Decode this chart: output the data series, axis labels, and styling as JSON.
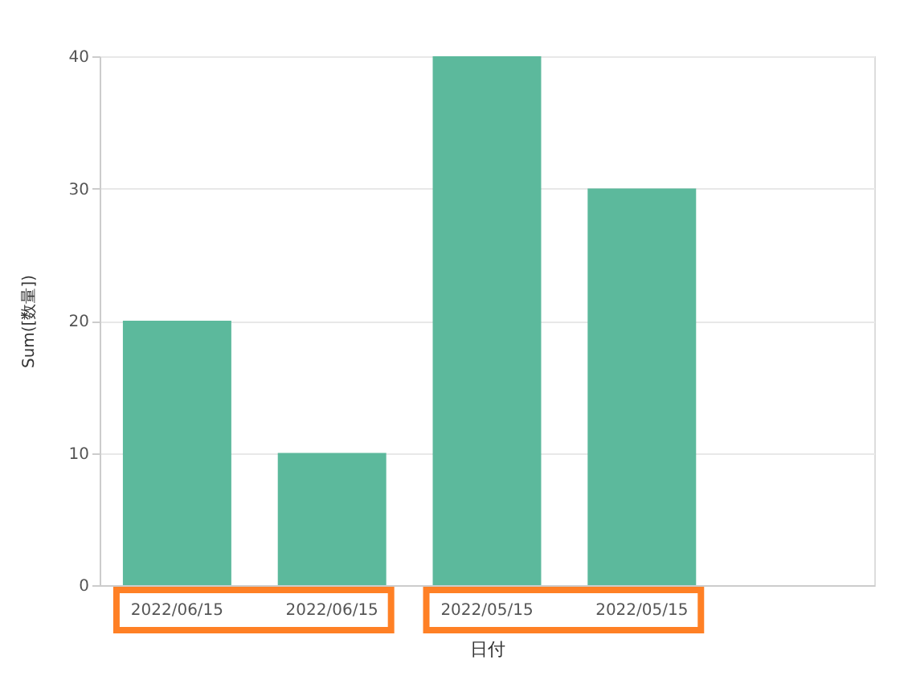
{
  "chart_data": {
    "type": "bar",
    "categories": [
      "2022/06/15",
      "2022/06/15",
      "2022/05/15",
      "2022/05/15",
      null
    ],
    "values": [
      20,
      10,
      40,
      30,
      null
    ],
    "color": "#5cb99c",
    "xlabel": "日付",
    "ylabel": "Sum([数量])",
    "ylim": [
      0,
      40
    ],
    "yticks": [
      0,
      10,
      20,
      30,
      40
    ],
    "grid": "y"
  }
}
